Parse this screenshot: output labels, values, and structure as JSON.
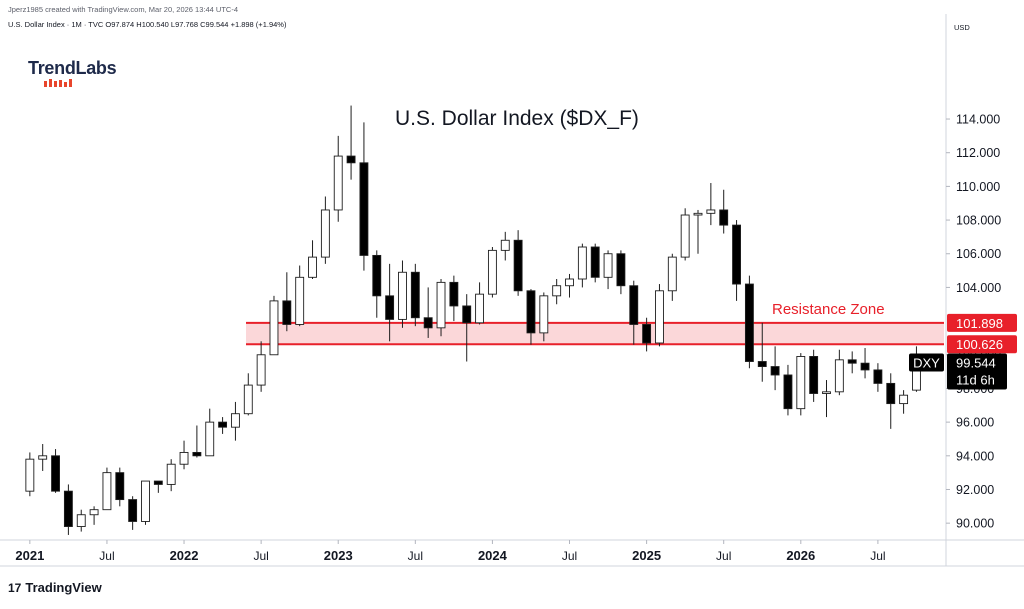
{
  "header": {
    "credit": "Jperz1985 created with TradingView.com, Mar 20, 2026 13:44 UTC-4",
    "legend": {
      "symbol": "U.S. Dollar Index · 1M · TVC",
      "open": "O97.874",
      "high": "H100.540",
      "low": "L97.768",
      "close": "C99.544",
      "change": "+1.898 (+1.94%)"
    }
  },
  "logo": {
    "text": "TrendLabs",
    "accent": "#e8452c"
  },
  "footer": {
    "brand": "TradingView",
    "mark": "17"
  },
  "colors": {
    "up_fill": "#ffffff",
    "down_fill": "#000000",
    "candle_border": "#1e1e1e",
    "resistance": "#e8202a",
    "resistance_fill": "#f9c9cc",
    "grid": "#e0e3eb"
  },
  "chart_data": {
    "type": "candlestick",
    "title": "U.S. Dollar Index ($DX_F)",
    "currency": "USD",
    "ylim": [
      89,
      120
    ],
    "y_ticks": [
      "90.000",
      "92.000",
      "94.000",
      "96.000",
      "98.000",
      "100.000",
      "104.000",
      "106.000",
      "108.000",
      "110.000",
      "112.000",
      "114.000"
    ],
    "x_ticks": [
      {
        "label": "2021",
        "month": 0,
        "bold": true
      },
      {
        "label": "Jul",
        "month": 6,
        "bold": false
      },
      {
        "label": "2022",
        "month": 12,
        "bold": true
      },
      {
        "label": "Jul",
        "month": 18,
        "bold": false
      },
      {
        "label": "2023",
        "month": 24,
        "bold": true
      },
      {
        "label": "Jul",
        "month": 30,
        "bold": false
      },
      {
        "label": "2024",
        "month": 36,
        "bold": true
      },
      {
        "label": "Jul",
        "month": 42,
        "bold": false
      },
      {
        "label": "2025",
        "month": 48,
        "bold": true
      },
      {
        "label": "Jul",
        "month": 54,
        "bold": false
      },
      {
        "label": "2026",
        "month": 60,
        "bold": true
      },
      {
        "label": "Jul",
        "month": 66,
        "bold": false
      }
    ],
    "xlim": [
      -1.7,
      71.3
    ],
    "resistance_zone": {
      "label": "Resistance Zone",
      "upper": 101.898,
      "lower": 100.626,
      "upper_label": "101.898",
      "lower_label": "100.626"
    },
    "last_price": {
      "symbol": "DXY",
      "price": "99.544",
      "countdown": "11d 6h"
    },
    "candles": [
      {
        "o": 91.9,
        "h": 94.2,
        "l": 91.6,
        "c": 93.8
      },
      {
        "o": 93.8,
        "h": 94.7,
        "l": 93.1,
        "c": 94.0
      },
      {
        "o": 94.0,
        "h": 94.4,
        "l": 91.8,
        "c": 91.9
      },
      {
        "o": 91.9,
        "h": 92.3,
        "l": 89.3,
        "c": 89.8
      },
      {
        "o": 89.8,
        "h": 90.8,
        "l": 89.5,
        "c": 90.5
      },
      {
        "o": 90.5,
        "h": 91.0,
        "l": 89.9,
        "c": 90.8
      },
      {
        "o": 90.8,
        "h": 93.3,
        "l": 90.8,
        "c": 93.0
      },
      {
        "o": 93.0,
        "h": 93.3,
        "l": 91.0,
        "c": 91.4
      },
      {
        "o": 91.4,
        "h": 91.6,
        "l": 89.6,
        "c": 90.1
      },
      {
        "o": 90.1,
        "h": 92.5,
        "l": 89.9,
        "c": 92.5
      },
      {
        "o": 92.5,
        "h": 92.5,
        "l": 91.8,
        "c": 92.3
      },
      {
        "o": 92.3,
        "h": 93.8,
        "l": 91.9,
        "c": 93.5
      },
      {
        "o": 93.5,
        "h": 94.9,
        "l": 93.2,
        "c": 94.2
      },
      {
        "o": 94.2,
        "h": 95.8,
        "l": 93.9,
        "c": 94.0
      },
      {
        "o": 94.0,
        "h": 96.8,
        "l": 94.0,
        "c": 96.0
      },
      {
        "o": 96.0,
        "h": 96.3,
        "l": 95.3,
        "c": 95.7
      },
      {
        "o": 95.7,
        "h": 97.2,
        "l": 94.9,
        "c": 96.5
      },
      {
        "o": 96.5,
        "h": 98.9,
        "l": 96.4,
        "c": 98.2
      },
      {
        "o": 98.2,
        "h": 100.8,
        "l": 97.8,
        "c": 100.0
      },
      {
        "o": 100.0,
        "h": 103.5,
        "l": 100.0,
        "c": 103.2
      },
      {
        "o": 103.2,
        "h": 104.9,
        "l": 101.4,
        "c": 101.8
      },
      {
        "o": 101.8,
        "h": 105.3,
        "l": 101.7,
        "c": 104.6
      },
      {
        "o": 104.6,
        "h": 106.8,
        "l": 104.5,
        "c": 105.8
      },
      {
        "o": 105.8,
        "h": 109.4,
        "l": 105.4,
        "c": 108.6
      },
      {
        "o": 108.6,
        "h": 113.0,
        "l": 107.9,
        "c": 111.8
      },
      {
        "o": 111.8,
        "h": 114.8,
        "l": 110.4,
        "c": 111.4
      },
      {
        "o": 111.4,
        "h": 113.8,
        "l": 105.0,
        "c": 105.9
      },
      {
        "o": 105.9,
        "h": 106.2,
        "l": 102.2,
        "c": 103.5
      },
      {
        "o": 103.5,
        "h": 105.4,
        "l": 100.8,
        "c": 102.1
      },
      {
        "o": 102.1,
        "h": 105.6,
        "l": 101.6,
        "c": 104.9
      },
      {
        "o": 104.9,
        "h": 105.4,
        "l": 101.7,
        "c": 102.2
      },
      {
        "o": 102.2,
        "h": 104.0,
        "l": 101.0,
        "c": 101.6
      },
      {
        "o": 101.6,
        "h": 104.5,
        "l": 101.1,
        "c": 104.3
      },
      {
        "o": 104.3,
        "h": 104.7,
        "l": 102.0,
        "c": 102.9
      },
      {
        "o": 102.9,
        "h": 103.6,
        "l": 99.6,
        "c": 101.9
      },
      {
        "o": 101.9,
        "h": 104.3,
        "l": 101.8,
        "c": 103.6
      },
      {
        "o": 103.6,
        "h": 106.4,
        "l": 103.4,
        "c": 106.2
      },
      {
        "o": 106.2,
        "h": 107.3,
        "l": 105.6,
        "c": 106.8
      },
      {
        "o": 106.8,
        "h": 107.4,
        "l": 103.5,
        "c": 103.8
      },
      {
        "o": 103.8,
        "h": 103.9,
        "l": 100.6,
        "c": 101.3
      },
      {
        "o": 101.3,
        "h": 103.7,
        "l": 100.8,
        "c": 103.5
      },
      {
        "o": 103.5,
        "h": 104.5,
        "l": 103.0,
        "c": 104.1
      },
      {
        "o": 104.1,
        "h": 104.8,
        "l": 103.4,
        "c": 104.5
      },
      {
        "o": 104.5,
        "h": 106.6,
        "l": 104.0,
        "c": 106.4
      },
      {
        "o": 106.4,
        "h": 106.6,
        "l": 104.3,
        "c": 104.6
      },
      {
        "o": 104.6,
        "h": 106.2,
        "l": 103.9,
        "c": 106.0
      },
      {
        "o": 106.0,
        "h": 106.2,
        "l": 103.6,
        "c": 104.1
      },
      {
        "o": 104.1,
        "h": 104.4,
        "l": 100.6,
        "c": 101.8
      },
      {
        "o": 101.8,
        "h": 102.2,
        "l": 100.2,
        "c": 100.7
      },
      {
        "o": 100.7,
        "h": 104.2,
        "l": 100.5,
        "c": 103.8
      },
      {
        "o": 103.8,
        "h": 106.0,
        "l": 103.2,
        "c": 105.8
      },
      {
        "o": 105.8,
        "h": 108.7,
        "l": 105.6,
        "c": 108.3
      },
      {
        "o": 108.3,
        "h": 108.6,
        "l": 106.0,
        "c": 108.4
      },
      {
        "o": 108.4,
        "h": 110.2,
        "l": 107.7,
        "c": 108.6
      },
      {
        "o": 108.6,
        "h": 109.8,
        "l": 107.2,
        "c": 107.7
      },
      {
        "o": 107.7,
        "h": 108.0,
        "l": 103.2,
        "c": 104.2
      },
      {
        "o": 104.2,
        "h": 104.7,
        "l": 99.2,
        "c": 99.6
      },
      {
        "o": 99.6,
        "h": 101.9,
        "l": 98.4,
        "c": 99.3
      },
      {
        "o": 99.3,
        "h": 100.5,
        "l": 97.9,
        "c": 98.8
      },
      {
        "o": 98.8,
        "h": 99.4,
        "l": 96.4,
        "c": 96.8
      },
      {
        "o": 96.8,
        "h": 100.1,
        "l": 96.4,
        "c": 99.9
      },
      {
        "o": 99.9,
        "h": 100.3,
        "l": 97.2,
        "c": 97.7
      },
      {
        "o": 97.7,
        "h": 98.5,
        "l": 96.3,
        "c": 97.8
      },
      {
        "o": 97.8,
        "h": 100.3,
        "l": 97.6,
        "c": 99.7
      },
      {
        "o": 99.7,
        "h": 100.2,
        "l": 98.9,
        "c": 99.5
      },
      {
        "o": 99.5,
        "h": 100.4,
        "l": 98.6,
        "c": 99.1
      },
      {
        "o": 99.1,
        "h": 99.5,
        "l": 97.8,
        "c": 98.3
      },
      {
        "o": 98.3,
        "h": 98.9,
        "l": 95.6,
        "c": 97.1
      },
      {
        "o": 97.1,
        "h": 97.9,
        "l": 96.5,
        "c": 97.6
      },
      {
        "o": 97.9,
        "h": 100.5,
        "l": 97.8,
        "c": 99.5
      }
    ]
  }
}
